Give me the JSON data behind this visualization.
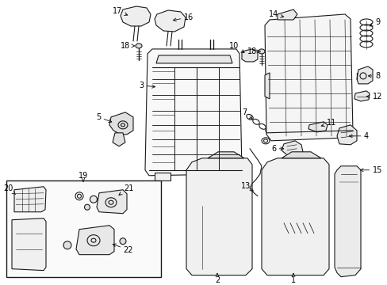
{
  "bg_color": "#ffffff",
  "line_color": "#1a1a1a",
  "label_color": "#000000",
  "label_fontsize": 7.0,
  "fig_width": 4.89,
  "fig_height": 3.6,
  "dpi": 100,
  "arrow_color": "#111111",
  "arrow_lw": 0.6
}
